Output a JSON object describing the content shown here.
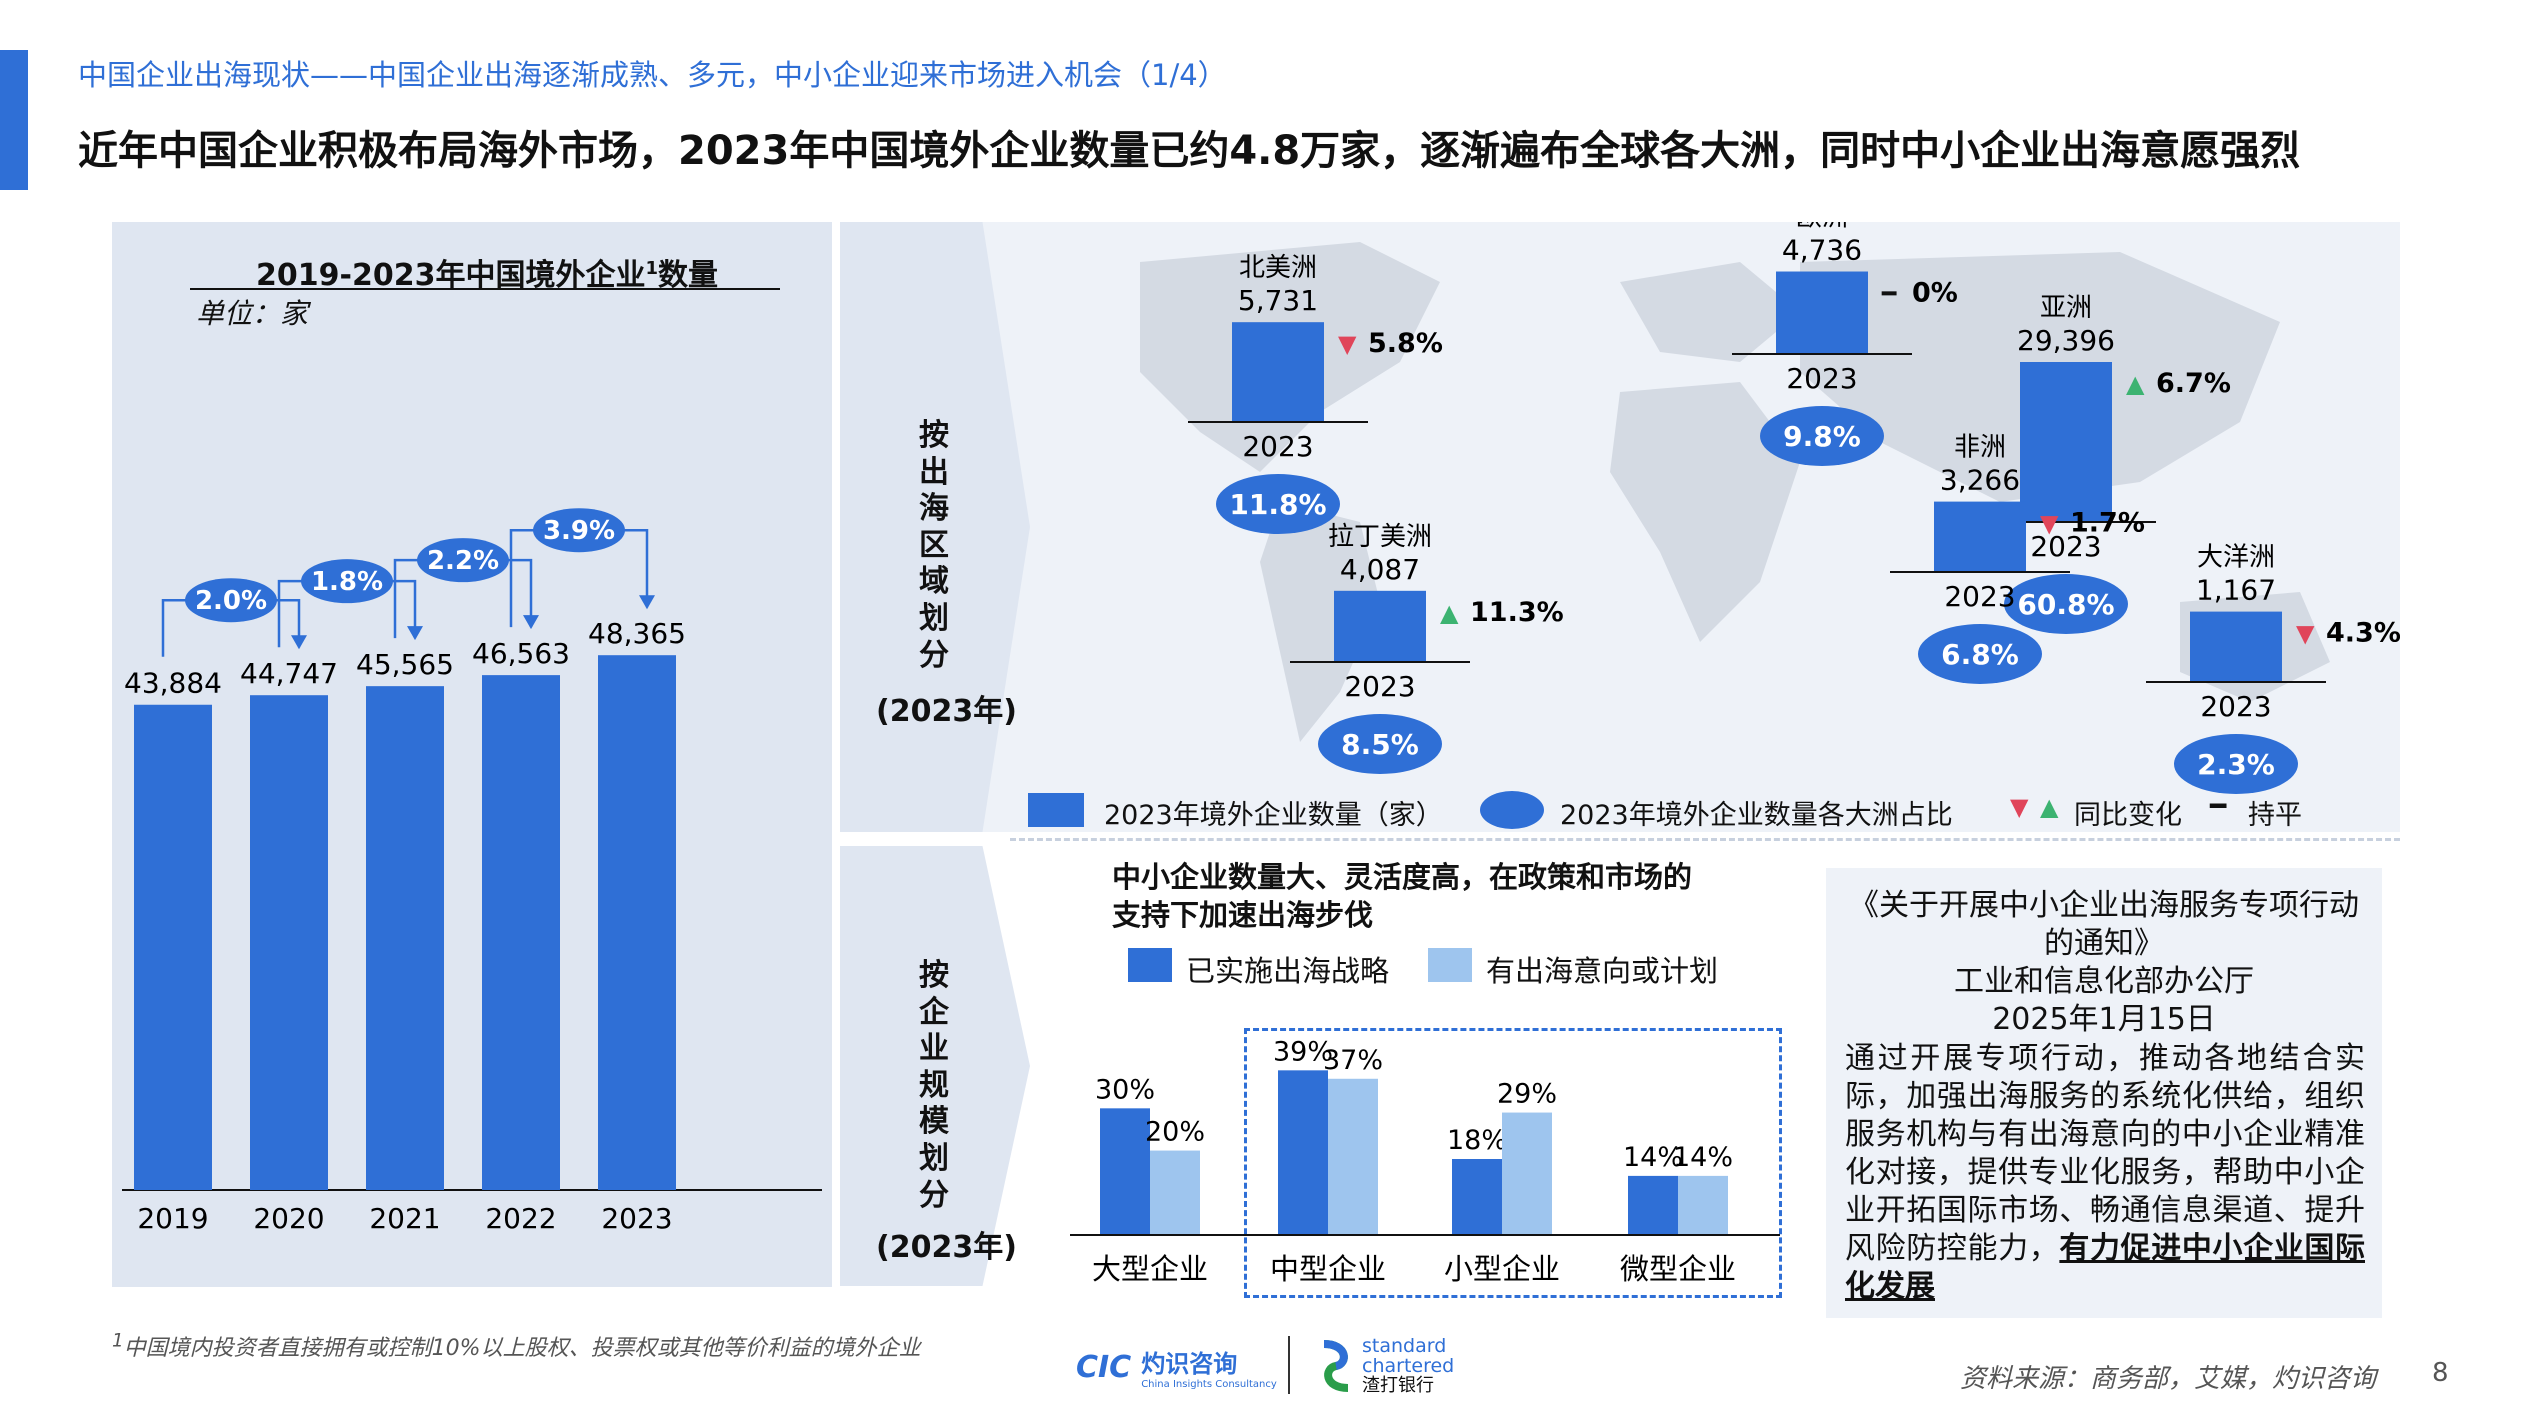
{
  "header": {
    "breadcrumb": "中国企业出海现状——中国企业出海逐渐成熟、多元，中小企业迎来市场进入机会（1/4）",
    "headline": "近年中国企业积极布局海外市场，2023年中国境外企业数量已约4.8万家，逐渐遍布全球各大洲，同时中小企业出海意愿强烈"
  },
  "left_chart": {
    "title": "2019-2023年中国境外企业",
    "title_sup": "1",
    "title_tail": "数量",
    "unit": "单位：家"
  },
  "region_section": {
    "label": "按出海区域划分",
    "year": "(2023年)",
    "legend_count": "2023年境外企业数量（家）",
    "legend_share": "2023年境外企业数量各大洲占比",
    "legend_change": "同比变化",
    "legend_flat": "持平",
    "flat_glyph": "━",
    "up_glyph": "▲",
    "down_glyph": "▼"
  },
  "size_section": {
    "label": "按企业规模划分",
    "year": "(2023年)",
    "intro_line1": "中小企业数量大、灵活度高，在政策和市场的",
    "intro_line2": "支持下加速出海步伐"
  },
  "notice": {
    "title_line1": "《关于开展中小企业出海服务专项行动",
    "title_line2": "的通知》",
    "issuer": "工业和信息化部办公厅",
    "date": "2025年1月15日",
    "body": "通过开展专项行动，推动各地结合实际，加强出海服务的系统化供给，组织服务机构与有出海意向的中小企业精准化对接，提供专业化服务，帮助中小企业开拓国际市场、畅通信息渠道、提升风险防控能力，",
    "body_emph": "有力促进中小企业国际化发展"
  },
  "footer": {
    "footnote_sup": "1",
    "footnote": "中国境内投资者直接拥有或控制10%以上股权、投票权或其他等价利益的境外企业",
    "source": "资料来源：商务部，艾媒，灼识咨询",
    "page": "8",
    "logo_cic": "CIC",
    "logo_cic_cn": "灼识咨询",
    "logo_cic_en": "China Insights Consultancy",
    "logo_sc_1": "standard",
    "logo_sc_2": "chartered",
    "logo_sc_cn": "渣打银行"
  },
  "colors": {
    "accent": "#2f6fd6",
    "light": "#9ec5ee",
    "panel": "#dfe6f1",
    "up": "#3cb371",
    "down": "#e0455a"
  },
  "chart_data": [
    {
      "type": "bar",
      "title": "2019-2023年中国境外企业1数量",
      "ylabel": "单位：家",
      "categories": [
        "2019",
        "2020",
        "2021",
        "2022",
        "2023"
      ],
      "values": [
        43884,
        44747,
        45565,
        46563,
        48365
      ],
      "value_labels": [
        "43,884",
        "44,747",
        "45,565",
        "46,563",
        "48,365"
      ],
      "growth_labels": [
        "2.0%",
        "1.8%",
        "2.2%",
        "3.9%"
      ],
      "ylim": [
        0,
        52000
      ]
    },
    {
      "type": "bar",
      "year": "2023",
      "regions": [
        {
          "name": "北美洲",
          "value": 5731,
          "value_label": "5,731",
          "share": "11.8%",
          "change": "5.8%",
          "dir": "down"
        },
        {
          "name": "欧洲",
          "value": 4736,
          "value_label": "4,736",
          "share": "9.8%",
          "change": "0%",
          "dir": "flat"
        },
        {
          "name": "亚洲",
          "value": 29396,
          "value_label": "29,396",
          "share": "60.8%",
          "change": "6.7%",
          "dir": "up"
        },
        {
          "name": "拉丁美洲",
          "value": 4087,
          "value_label": "4,087",
          "share": "8.5%",
          "change": "11.3%",
          "dir": "up"
        },
        {
          "name": "非洲",
          "value": 3266,
          "value_label": "3,266",
          "share": "6.8%",
          "change": "1.7%",
          "dir": "down"
        },
        {
          "name": "大洋洲",
          "value": 1167,
          "value_label": "1,167",
          "share": "2.3%",
          "change": "4.3%",
          "dir": "down"
        }
      ]
    },
    {
      "type": "bar",
      "categories": [
        "大型企业",
        "中型企业",
        "小型企业",
        "微型企业"
      ],
      "series": [
        {
          "name": "已实施出海战略",
          "values": [
            30,
            39,
            18,
            14
          ],
          "labels": [
            "30%",
            "39%",
            "18%",
            "14%"
          ]
        },
        {
          "name": "有出海意向或计划",
          "values": [
            20,
            37,
            29,
            14
          ],
          "labels": [
            "20%",
            "37%",
            "29%",
            "14%"
          ]
        }
      ],
      "ylim": [
        0,
        45
      ]
    }
  ]
}
